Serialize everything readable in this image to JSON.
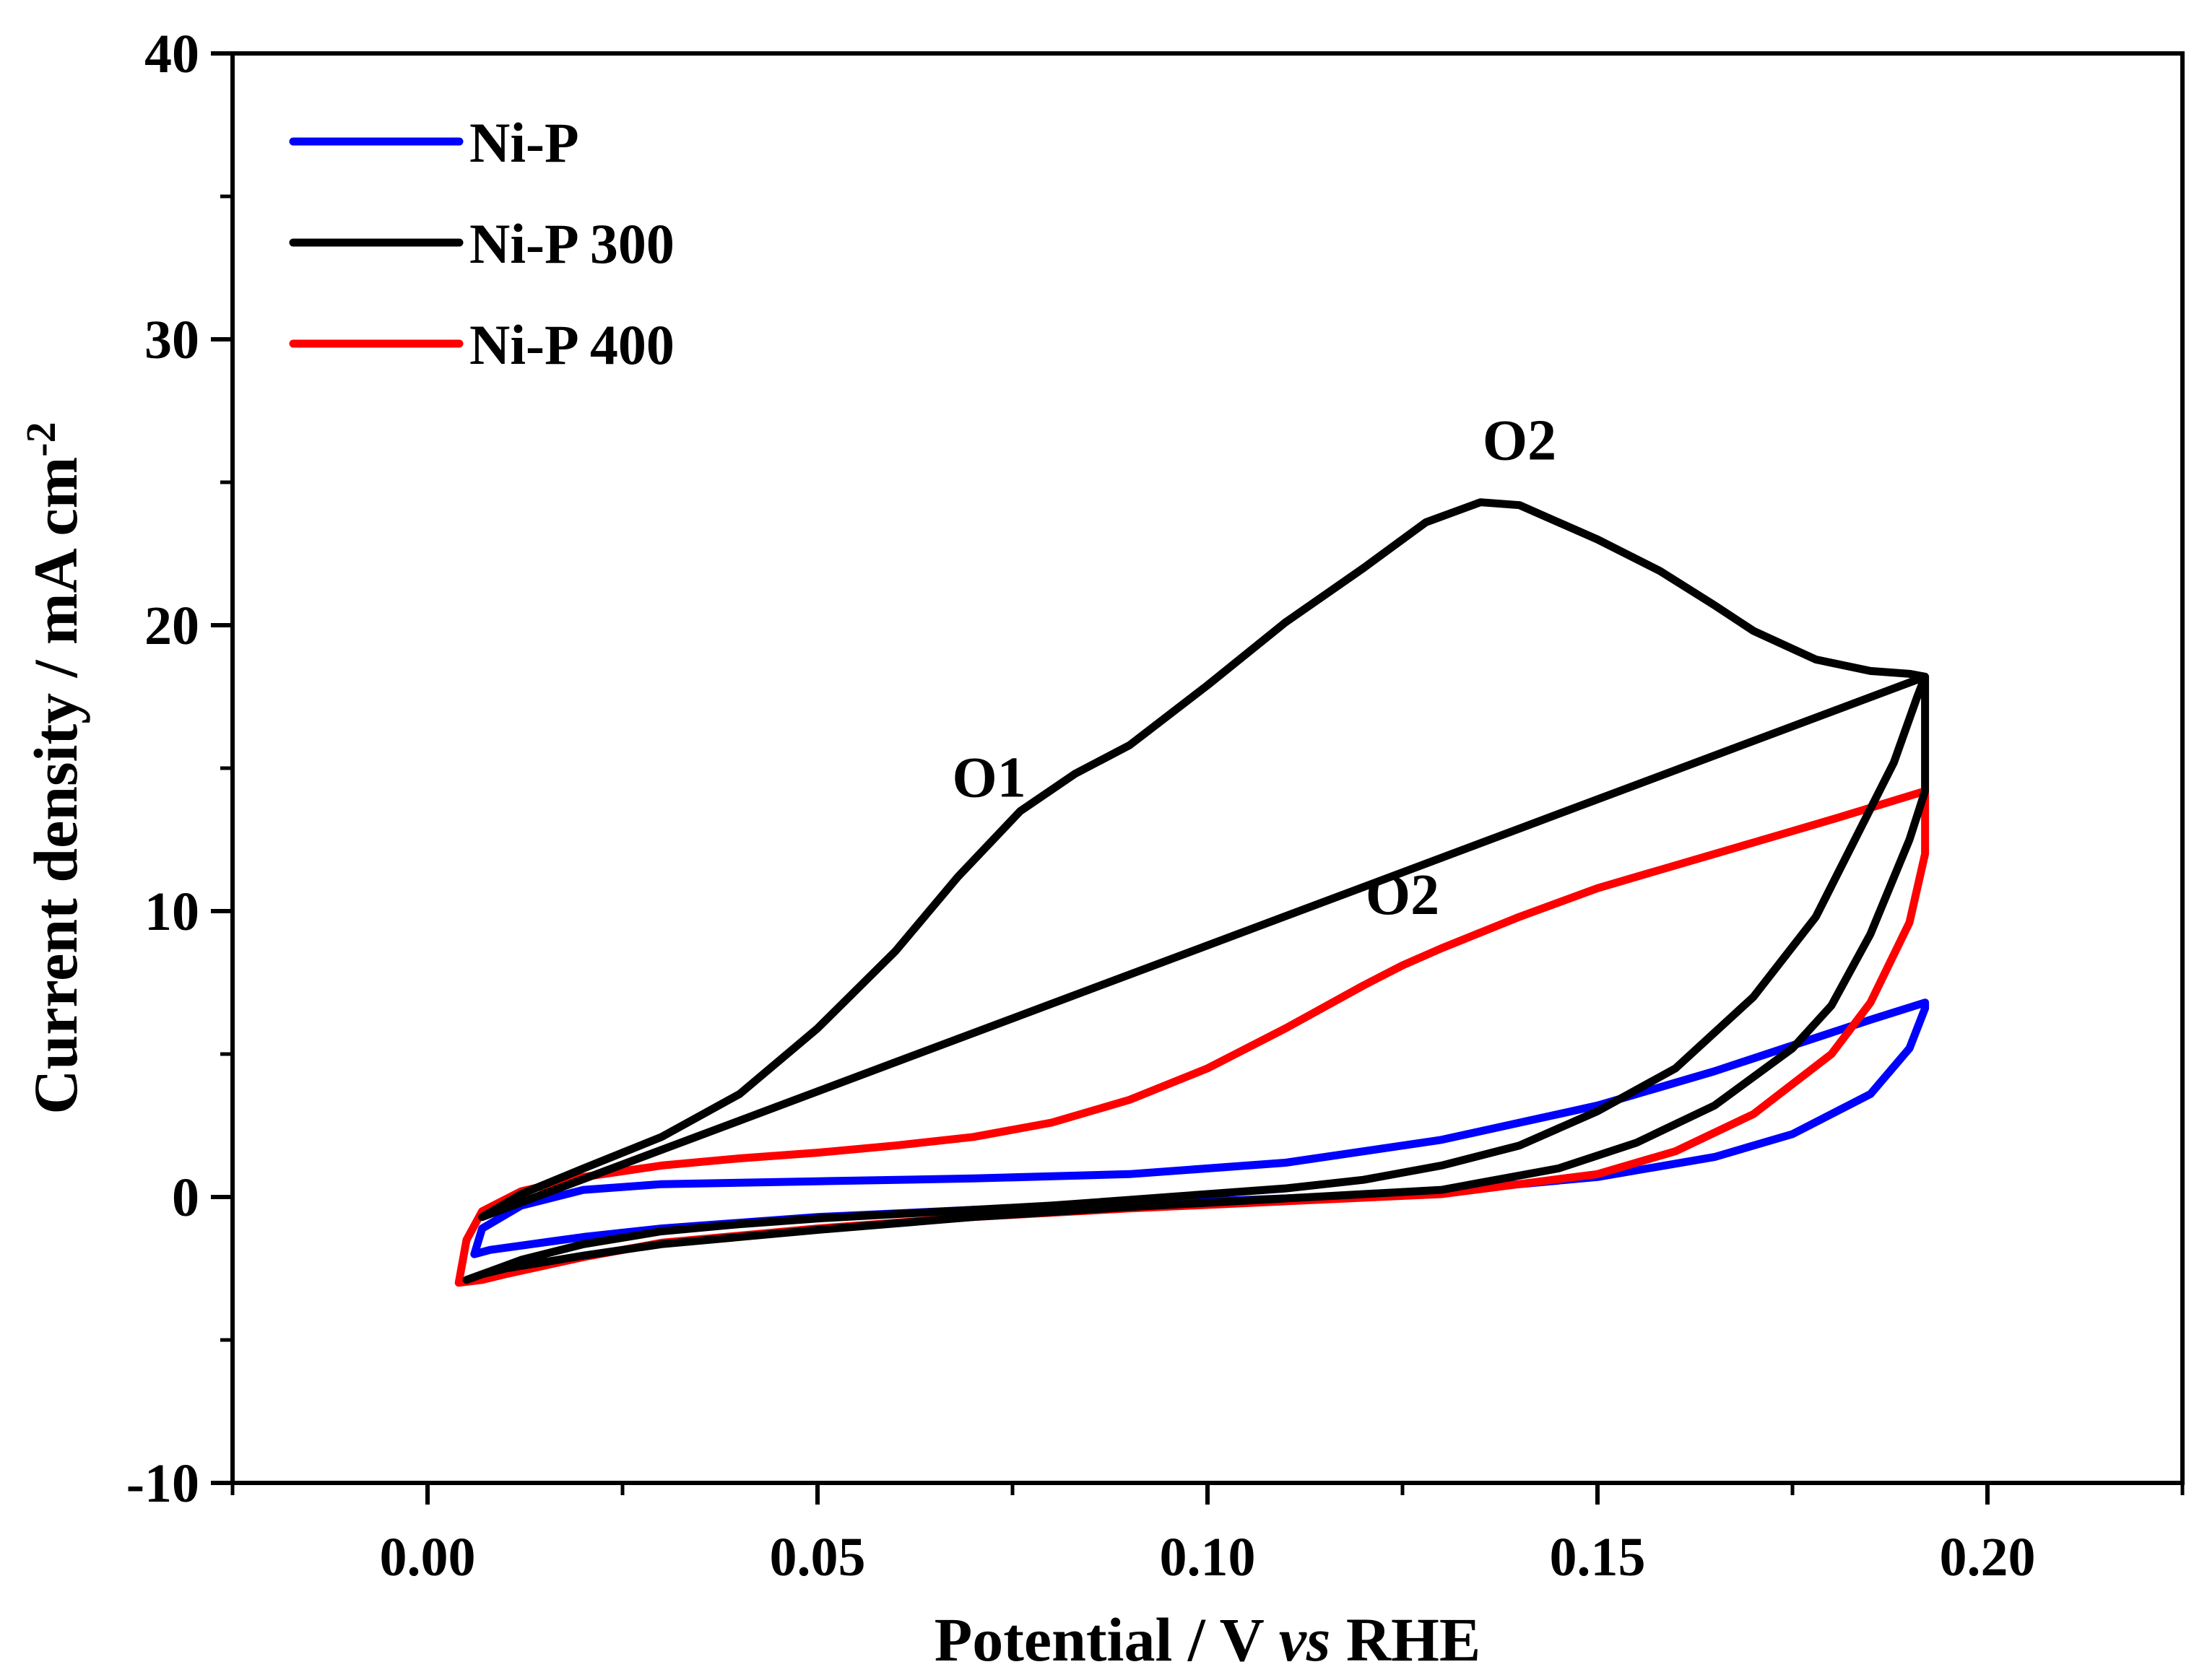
{
  "chart_data": {
    "type": "line",
    "title": "",
    "xlabel": {
      "prefix": "Potential / V ",
      "italic": "vs",
      "suffix": " RHE"
    },
    "ylabel": {
      "base": "Current density / mA cm",
      "superscript": "-2"
    },
    "xlim": [
      -0.025,
      0.225
    ],
    "ylim": [
      -10,
      40
    ],
    "xticks": [
      0.0,
      0.05,
      0.1,
      0.15,
      0.2
    ],
    "xtick_labels": [
      "0.00",
      "0.05",
      "0.10",
      "0.15",
      "0.20"
    ],
    "yticks": [
      -10,
      0,
      10,
      20,
      30,
      40
    ],
    "ytick_labels": [
      "-10",
      "0",
      "10",
      "20",
      "30",
      "40"
    ],
    "grid": false,
    "legend_position": "top-left",
    "series": [
      {
        "name": "Ni-P",
        "color": "#0000ff",
        "x": [
          0.192,
          0.185,
          0.175,
          0.165,
          0.15,
          0.13,
          0.11,
          0.09,
          0.07,
          0.05,
          0.03,
          0.02,
          0.012,
          0.007,
          0.006,
          0.008,
          0.012,
          0.02,
          0.03,
          0.05,
          0.07,
          0.09,
          0.11,
          0.13,
          0.15,
          0.165,
          0.175,
          0.185,
          0.19,
          0.192
        ],
        "y": [
          6.8,
          6.2,
          5.3,
          4.4,
          3.2,
          2.0,
          1.2,
          0.8,
          0.65,
          0.55,
          0.45,
          0.25,
          -0.3,
          -1.1,
          -2.0,
          -1.85,
          -1.7,
          -1.4,
          -1.1,
          -0.7,
          -0.45,
          -0.25,
          -0.05,
          0.2,
          0.7,
          1.4,
          2.2,
          3.6,
          5.2,
          6.6
        ]
      },
      {
        "name": "Ni-P 300",
        "color": "#000000",
        "x": [
          0.192,
          0.191,
          0.188,
          0.183,
          0.178,
          0.17,
          0.16,
          0.15,
          0.14,
          0.13,
          0.12,
          0.11,
          0.1,
          0.09,
          0.08,
          0.07,
          0.06,
          0.05,
          0.04,
          0.03,
          0.02,
          0.012,
          0.008,
          0.005,
          0.007,
          0.01,
          0.02,
          0.03,
          0.05,
          0.07,
          0.09,
          0.11,
          0.13,
          0.145,
          0.155,
          0.165,
          0.175,
          0.18,
          0.185,
          0.19,
          0.192,
          0.192,
          0.19,
          0.185,
          0.178,
          0.17,
          0.165,
          0.158,
          0.15,
          0.14,
          0.135,
          0.128,
          0.12,
          0.11,
          0.1,
          0.09,
          0.083,
          0.076,
          0.068,
          0.06,
          0.05,
          0.04,
          0.03,
          0.02,
          0.012,
          0.007
        ],
        "y": [
          18.2,
          17.5,
          15.2,
          12.5,
          9.8,
          7.0,
          4.5,
          3.0,
          1.8,
          1.1,
          0.6,
          0.3,
          0.1,
          -0.1,
          -0.3,
          -0.45,
          -0.6,
          -0.75,
          -0.95,
          -1.2,
          -1.65,
          -2.2,
          -2.6,
          -2.9,
          -2.7,
          -2.5,
          -2.05,
          -1.65,
          -1.15,
          -0.7,
          -0.35,
          -0.05,
          0.25,
          1.0,
          1.9,
          3.2,
          5.2,
          6.7,
          9.2,
          12.5,
          14.2,
          18.2,
          18.3,
          18.4,
          18.8,
          19.8,
          20.7,
          21.9,
          23.0,
          24.2,
          24.3,
          23.6,
          22.0,
          20.1,
          17.9,
          15.8,
          14.8,
          13.5,
          11.2,
          8.6,
          5.9,
          3.6,
          2.1,
          1.0,
          0.1,
          -0.7
        ]
      },
      {
        "name": "Ni-P 400",
        "color": "#ff0000",
        "x": [
          0.192,
          0.18,
          0.17,
          0.16,
          0.15,
          0.14,
          0.13,
          0.125,
          0.12,
          0.11,
          0.1,
          0.09,
          0.08,
          0.07,
          0.06,
          0.05,
          0.04,
          0.03,
          0.02,
          0.012,
          0.007,
          0.005,
          0.004,
          0.007,
          0.01,
          0.02,
          0.03,
          0.05,
          0.07,
          0.09,
          0.11,
          0.13,
          0.15,
          0.16,
          0.17,
          0.18,
          0.185,
          0.19,
          0.192,
          0.192
        ],
        "y": [
          14.2,
          13.2,
          12.4,
          11.6,
          10.8,
          9.8,
          8.7,
          8.1,
          7.4,
          5.9,
          4.5,
          3.4,
          2.6,
          2.1,
          1.8,
          1.55,
          1.35,
          1.1,
          0.7,
          0.2,
          -0.5,
          -1.5,
          -3.0,
          -2.9,
          -2.7,
          -2.1,
          -1.6,
          -1.1,
          -0.7,
          -0.4,
          -0.15,
          0.1,
          0.8,
          1.6,
          2.9,
          5.0,
          6.8,
          9.6,
          12.0,
          14.2
        ]
      }
    ],
    "annotations": [
      {
        "text": "O1",
        "x": 0.072,
        "y": 14.0,
        "color": "#000000"
      },
      {
        "text": "O2",
        "x": 0.14,
        "y": 25.8,
        "color": "#000000"
      },
      {
        "text": "O2",
        "x": 0.125,
        "y": 9.9,
        "color": "#ff0000"
      }
    ]
  }
}
